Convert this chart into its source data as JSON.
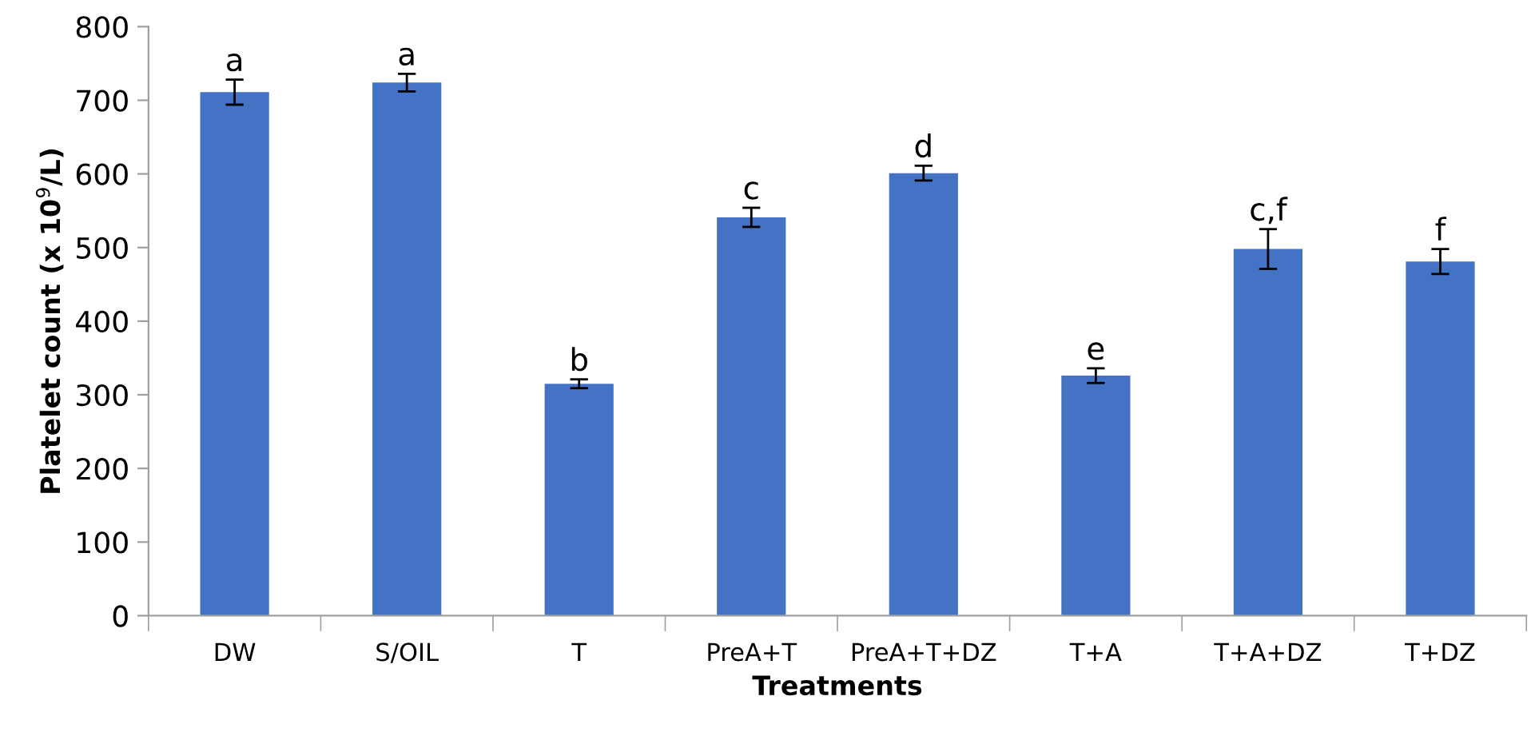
{
  "chart_data": {
    "type": "bar",
    "xlabel": "Treatments",
    "ylabel": "Platelet count (x 10$^{9}$/L)",
    "categories": [
      "DW",
      "S/OIL",
      "T",
      "PreA+T",
      "PreA+T+DZ",
      "T+A",
      "T+A+DZ",
      "T+DZ"
    ],
    "values": [
      711,
      724,
      315,
      541,
      601,
      326,
      498,
      481
    ],
    "errors": [
      17,
      12,
      6,
      13,
      10,
      10,
      27,
      17
    ],
    "color": "#4472c4",
    "ylim": [
      0,
      800
    ],
    "yticks": [
      0,
      100,
      200,
      300,
      400,
      500,
      600,
      700,
      800
    ],
    "grid": false,
    "annotations": [
      {
        "text": "a",
        "x": "DW",
        "y": 728
      },
      {
        "text": "a",
        "x": "S/OIL",
        "y": 736
      },
      {
        "text": "b",
        "x": "T",
        "y": 321
      },
      {
        "text": "c",
        "x": "PreA+T",
        "y": 554
      },
      {
        "text": "d",
        "x": "PreA+T+DZ",
        "y": 611
      },
      {
        "text": "e",
        "x": "T+A",
        "y": 336
      },
      {
        "text": "c,f",
        "x": "T+A+DZ",
        "y": 525
      },
      {
        "text": "f",
        "x": "T+DZ",
        "y": 498
      }
    ]
  }
}
